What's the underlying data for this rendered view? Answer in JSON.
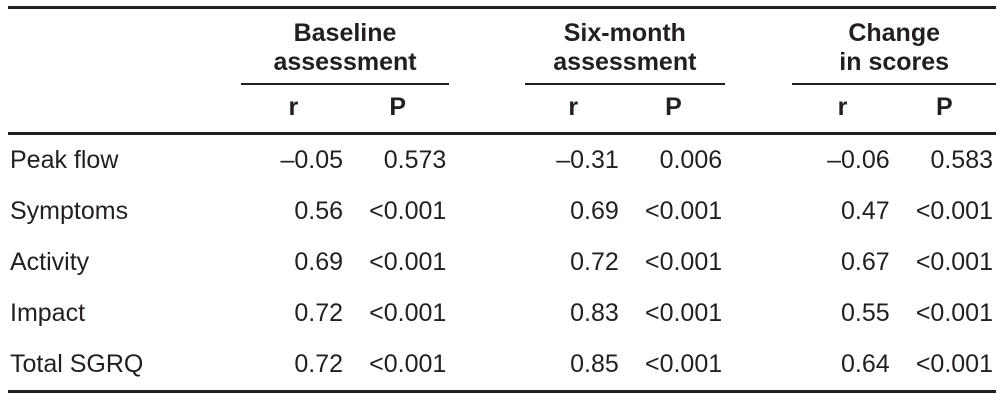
{
  "page": {
    "background": "#ffffff",
    "text_color": "#231f20",
    "rule_color": "#231f20"
  },
  "table": {
    "groups": [
      {
        "label": "Baseline assessment"
      },
      {
        "label": "Six-month assessment"
      },
      {
        "label": "Change in scores"
      }
    ],
    "subheaders": {
      "r": "r",
      "p": "P"
    },
    "rows": [
      {
        "label": "Peak flow",
        "values": [
          "–0.05",
          "0.573",
          "–0.31",
          "0.006",
          "–0.06",
          "0.583"
        ]
      },
      {
        "label": "Symptoms",
        "values": [
          "0.56",
          "<0.001",
          "0.69",
          "<0.001",
          "0.47",
          "<0.001"
        ]
      },
      {
        "label": "Activity",
        "values": [
          "0.69",
          "<0.001",
          "0.72",
          "<0.001",
          "0.67",
          "<0.001"
        ]
      },
      {
        "label": "Impact",
        "values": [
          "0.72",
          "<0.001",
          "0.83",
          "<0.001",
          "0.55",
          "<0.001"
        ]
      },
      {
        "label": "Total SGRQ",
        "values": [
          "0.72",
          "<0.001",
          "0.85",
          "<0.001",
          "0.64",
          "<0.001"
        ]
      }
    ]
  },
  "chart_data": {
    "type": "table",
    "column_groups": [
      "Baseline assessment",
      "Six-month assessment",
      "Change in scores"
    ],
    "columns": [
      "",
      "r",
      "P",
      "r",
      "P",
      "r",
      "P"
    ],
    "rows": [
      [
        "Peak flow",
        "–0.05",
        "0.573",
        "–0.31",
        "0.006",
        "–0.06",
        "0.583"
      ],
      [
        "Symptoms",
        "0.56",
        "<0.001",
        "0.69",
        "<0.001",
        "0.47",
        "<0.001"
      ],
      [
        "Activity",
        "0.69",
        "<0.001",
        "0.72",
        "<0.001",
        "0.67",
        "<0.001"
      ],
      [
        "Impact",
        "0.72",
        "<0.001",
        "0.83",
        "<0.001",
        "0.55",
        "<0.001"
      ],
      [
        "Total SGRQ",
        "0.72",
        "<0.001",
        "0.85",
        "<0.001",
        "0.64",
        "<0.001"
      ]
    ]
  }
}
